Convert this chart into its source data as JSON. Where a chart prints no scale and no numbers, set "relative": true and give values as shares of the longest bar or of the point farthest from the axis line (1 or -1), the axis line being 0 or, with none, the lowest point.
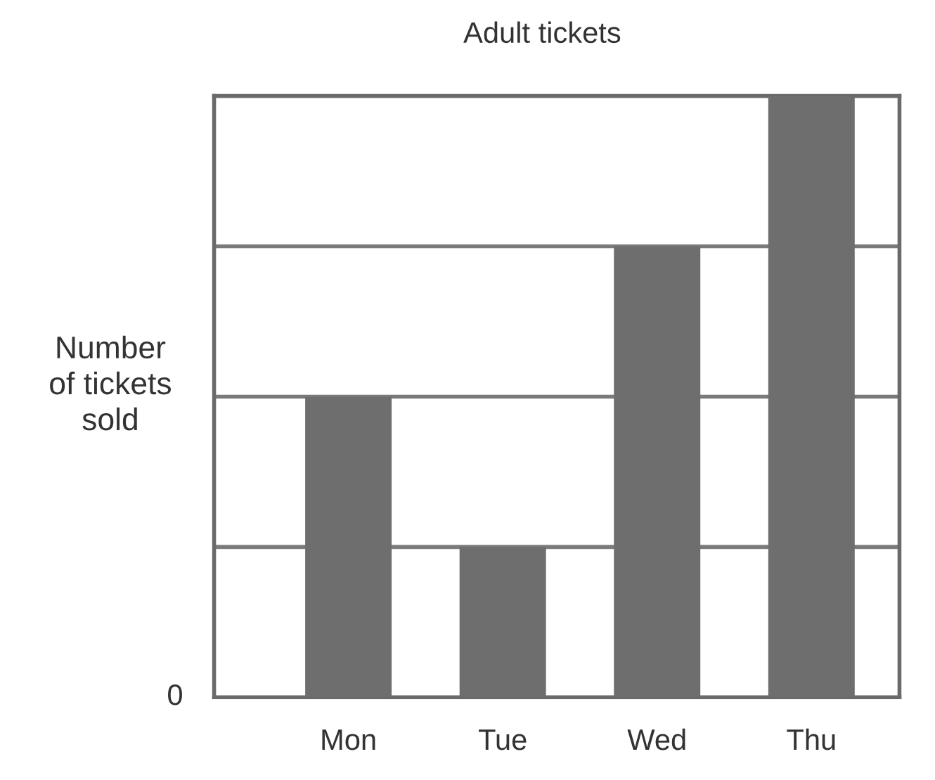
{
  "chart_data": {
    "type": "bar",
    "title": "Adult tickets",
    "ylabel": "Number\nof tickets\nsold",
    "categories": [
      "Mon",
      "Tue",
      "Wed",
      "Thu"
    ],
    "values": [
      0.5,
      0.25,
      0.75,
      1
    ],
    "color": "#6e6e6e",
    "relative": true,
    "ref_lines": [
      {
        "axis": "y",
        "value": 0.25,
        "color": "#7a7a7a"
      },
      {
        "axis": "y",
        "value": 0.5,
        "color": "#7a7a7a"
      },
      {
        "axis": "y",
        "value": 0.75,
        "color": "#7a7a7a"
      },
      {
        "axis": "y",
        "value": 1,
        "color": "#7a7a7a"
      }
    ],
    "annotations": [
      "0"
    ]
  }
}
